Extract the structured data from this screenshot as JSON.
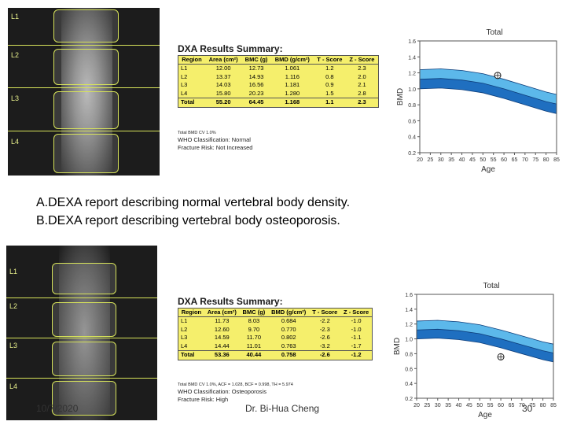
{
  "captions": {
    "a": "A.DEXA report describing normal vertebral body density.",
    "b": "B.DEXA report describing vertebral body osteoporosis."
  },
  "footer": {
    "date": "10/7/2020",
    "author": "Dr. Bi-Hua Cheng",
    "page": "30"
  },
  "report_a": {
    "title": "DXA Results Summary:",
    "headers": [
      "Region",
      "Area (cm²)",
      "BMC (g)",
      "BMD (g/cm²)",
      "T - Score",
      "Z - Score"
    ],
    "rows": [
      [
        "L1",
        "12.00",
        "12.73",
        "1.061",
        "1.2",
        "2.3"
      ],
      [
        "L2",
        "13.37",
        "14.93",
        "1.116",
        "0.8",
        "2.0"
      ],
      [
        "L3",
        "14.03",
        "16.56",
        "1.181",
        "0.9",
        "2.1"
      ],
      [
        "L4",
        "15.80",
        "20.23",
        "1.280",
        "1.5",
        "2.8"
      ]
    ],
    "total": [
      "Total",
      "55.20",
      "64.45",
      "1.168",
      "1.1",
      "2.3"
    ],
    "cv": "Total BMD CV 1.0%",
    "who": "WHO Classification: Normal",
    "risk": "Fracture Risk: Not Increased",
    "xray_labels": [
      "L1",
      "L2",
      "L3",
      "L4"
    ]
  },
  "report_b": {
    "title": "DXA Results Summary:",
    "headers": [
      "Region",
      "Area (cm²)",
      "BMC (g)",
      "BMD (g/cm²)",
      "T - Score",
      "Z - Score"
    ],
    "rows": [
      [
        "L1",
        "11.73",
        "8.03",
        "0.684",
        "-2.2",
        "-1.0"
      ],
      [
        "L2",
        "12.60",
        "9.70",
        "0.770",
        "-2.3",
        "-1.0"
      ],
      [
        "L3",
        "14.59",
        "11.70",
        "0.802",
        "-2.6",
        "-1.1"
      ],
      [
        "L4",
        "14.44",
        "11.01",
        "0.763",
        "-3.2",
        "-1.7"
      ]
    ],
    "total": [
      "Total",
      "53.36",
      "40.44",
      "0.758",
      "-2.6",
      "-1.2"
    ],
    "cv": "Total BMD CV 1.0%, ACF = 1.028, BCF = 0.998, TH = 5.974",
    "who": "WHO Classification: Osteoporosis",
    "risk": "Fracture Risk: High",
    "xray_labels": [
      "L1",
      "L2",
      "L3",
      "L4"
    ]
  },
  "chart_data": [
    {
      "type": "area",
      "title": "Total",
      "xlabel": "Age",
      "ylabel": "BMD",
      "x_ticks": [
        20,
        25,
        30,
        35,
        40,
        45,
        50,
        55,
        60,
        65,
        70,
        75,
        80,
        85
      ],
      "y_ticks": [
        0.2,
        0.4,
        0.6,
        0.8,
        1.0,
        1.2,
        1.4,
        1.6
      ],
      "ylim": [
        0.2,
        1.6
      ],
      "xlim": [
        20,
        85
      ],
      "bands": {
        "age": [
          20,
          30,
          40,
          50,
          60,
          70,
          80,
          85
        ],
        "upper": [
          1.24,
          1.25,
          1.23,
          1.19,
          1.12,
          1.04,
          0.96,
          0.93
        ],
        "mid": [
          1.12,
          1.13,
          1.11,
          1.07,
          1.0,
          0.92,
          0.84,
          0.81
        ],
        "lower": [
          1.0,
          1.01,
          0.99,
          0.95,
          0.88,
          0.8,
          0.72,
          0.69
        ]
      },
      "patient": {
        "age": 57,
        "bmd": 1.168
      },
      "colors": {
        "upper_band": "#5cb8ea",
        "lower_band": "#1f6fc0"
      },
      "grid": false
    },
    {
      "type": "area",
      "title": "Total",
      "xlabel": "Age",
      "ylabel": "BMD",
      "x_ticks": [
        20,
        25,
        30,
        35,
        40,
        45,
        50,
        55,
        60,
        65,
        70,
        75,
        80,
        85
      ],
      "y_ticks": [
        0.2,
        0.4,
        0.6,
        0.8,
        1.0,
        1.2,
        1.4,
        1.6
      ],
      "ylim": [
        0.2,
        1.6
      ],
      "xlim": [
        20,
        85
      ],
      "bands": {
        "age": [
          20,
          30,
          40,
          50,
          60,
          70,
          80,
          85
        ],
        "upper": [
          1.24,
          1.25,
          1.23,
          1.19,
          1.12,
          1.04,
          0.96,
          0.93
        ],
        "mid": [
          1.12,
          1.13,
          1.11,
          1.07,
          1.0,
          0.92,
          0.84,
          0.81
        ],
        "lower": [
          1.0,
          1.01,
          0.99,
          0.95,
          0.88,
          0.8,
          0.72,
          0.69
        ]
      },
      "patient": {
        "age": 60,
        "bmd": 0.758
      },
      "colors": {
        "upper_band": "#5cb8ea",
        "lower_band": "#1f6fc0"
      },
      "grid": false
    }
  ]
}
